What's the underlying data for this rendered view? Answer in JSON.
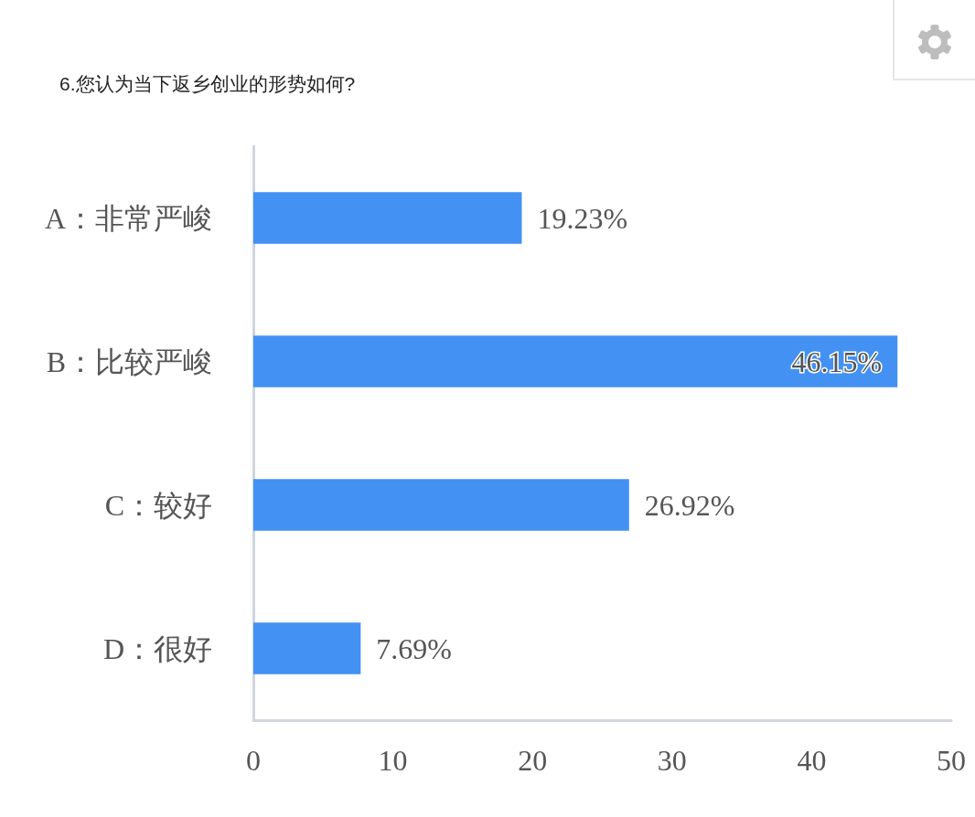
{
  "chart_data": {
    "type": "bar",
    "orientation": "horizontal",
    "title": "6.您认为当下返乡创业的形势如何?",
    "categories": [
      "A：非常严峻",
      "B：比较严峻",
      "C：较好",
      "D：很好"
    ],
    "values": [
      19.23,
      46.15,
      26.92,
      7.69
    ],
    "value_labels": [
      "19.23%",
      "46.15%",
      "26.92%",
      "7.69%"
    ],
    "color": "#4391f3",
    "xlim": [
      0,
      50
    ],
    "xticks": [
      0,
      10,
      20,
      30,
      40,
      50
    ]
  }
}
